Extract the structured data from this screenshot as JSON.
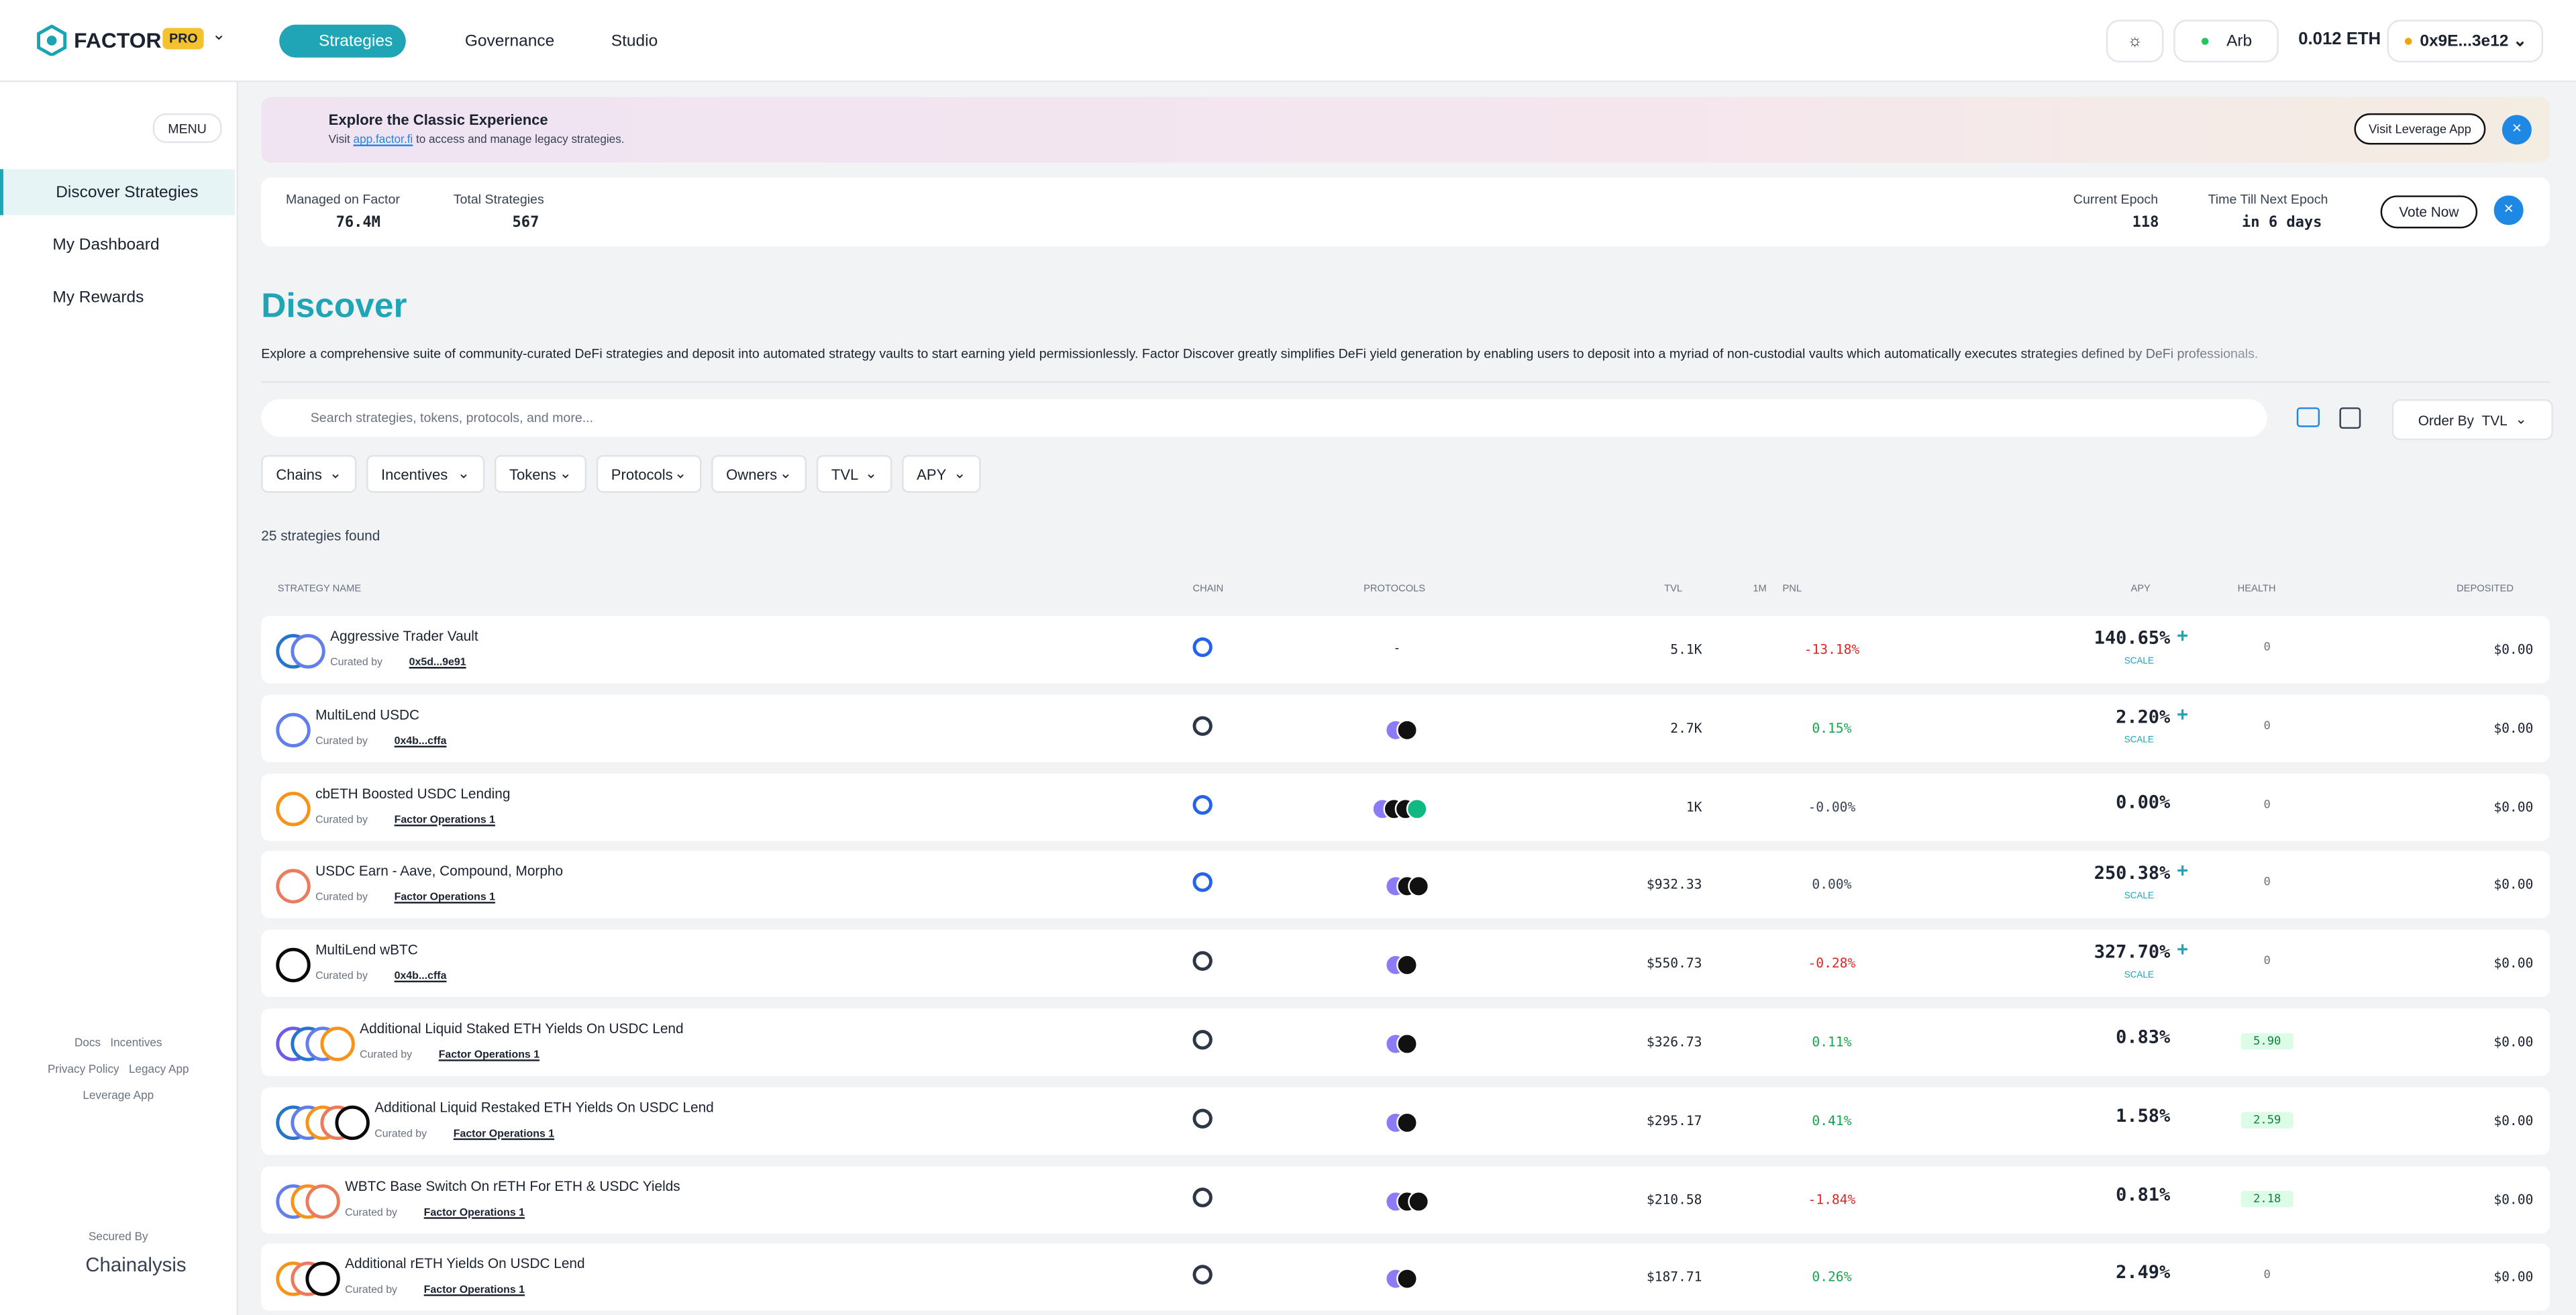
{
  "header": {
    "brand": "FACTOR",
    "badge": "PRO",
    "nav": [
      "Strategies",
      "Governance",
      "Studio"
    ],
    "network": "Arb",
    "balance": "0.012 ETH",
    "wallet": "0x9E...3e12"
  },
  "sidebar": {
    "menu": "MENU",
    "items": [
      "Discover Strategies",
      "My Dashboard",
      "My Rewards"
    ],
    "footer_links": [
      "Docs",
      "Incentives",
      "Privacy Policy",
      "Legacy App",
      "Leverage App"
    ],
    "secured_by": "Secured By",
    "partner": "Chainalysis"
  },
  "banner": {
    "title": "Explore the Classic Experience",
    "text_before": "Visit",
    "link": "app.factor.fi",
    "text_after": "to access and manage legacy strategies.",
    "button": "Visit Leverage App"
  },
  "stats": [
    {
      "label": "Managed on Factor",
      "value": "76.4M"
    },
    {
      "label": "Total Strategies",
      "value": "567"
    },
    {
      "label": "Current Epoch",
      "value": "118"
    },
    {
      "label": "Time Till Next Epoch",
      "value": "in 6 days"
    }
  ],
  "vote": "Vote Now",
  "discover": {
    "title": "Discover",
    "description": "Explore a comprehensive suite of community-curated DeFi strategies and deposit into automated strategy vaults to start earning yield permissionlessly. Factor Discover greatly simplifies DeFi yield generation by enabling users to deposit into a myriad of non-custodial vaults which automatically executes strategies defined by DeFi professionals."
  },
  "search_placeholder": "Search strategies, tokens, protocols, and more...",
  "order_by": {
    "label": "Order By",
    "value": "TVL"
  },
  "filters": [
    "Chains",
    "Incentives",
    "Tokens",
    "Protocols",
    "Owners",
    "TVL",
    "APY"
  ],
  "count": "25 strategies found",
  "table": {
    "columns": [
      "STRATEGY NAME",
      "CHAIN",
      "PROTOCOLS",
      "TVL",
      "1M",
      "PNL",
      "APY",
      "HEALTH",
      "DEPOSITED"
    ],
    "curated_label": "Curated by",
    "rows": [
      {
        "name": "Aggressive Trader Vault",
        "curator": "0x5d...9e91",
        "protocols": "-",
        "tvl": "5.1K",
        "pnl": "-13.18%",
        "apy": "140.65%",
        "boost": "SCALE",
        "health": "0",
        "deposited": "$0.00"
      },
      {
        "name": "MultiLend USDC",
        "curator": "0x4b...cffa",
        "tvl": "2.7K",
        "pnl": "0.15%",
        "apy": "2.20%",
        "boost": "SCALE",
        "health": "0",
        "deposited": "$0.00"
      },
      {
        "name": "cbETH Boosted USDC Lending",
        "curator": "Factor Operations 1",
        "tvl": "1K",
        "pnl": "-0.00%",
        "apy": "0.00%",
        "health": "0",
        "deposited": "$0.00"
      },
      {
        "name": "USDC Earn - Aave, Compound, Morpho",
        "curator": "Factor Operations 1",
        "tvl": "$932.33",
        "pnl": "0.00%",
        "apy": "250.38%",
        "boost": "SCALE",
        "health": "0",
        "deposited": "$0.00"
      },
      {
        "name": "MultiLend wBTC",
        "curator": "0x4b...cffa",
        "tvl": "$550.73",
        "pnl": "-0.28%",
        "apy": "327.70%",
        "boost": "SCALE",
        "health": "0",
        "deposited": "$0.00"
      },
      {
        "name": "Additional Liquid Staked ETH Yields On USDC Lend",
        "curator": "Factor Operations 1",
        "tvl": "$326.73",
        "pnl": "0.11%",
        "apy": "0.83%",
        "health": "5.90",
        "deposited": "$0.00"
      },
      {
        "name": "Additional Liquid Restaked ETH Yields On USDC Lend",
        "curator": "Factor Operations 1",
        "tvl": "$295.17",
        "pnl": "0.41%",
        "apy": "1.58%",
        "health": "2.59",
        "deposited": "$0.00"
      },
      {
        "name": "WBTC Base Switch On rETH For ETH & USDC Yields",
        "curator": "Factor Operations 1",
        "tvl": "$210.58",
        "pnl": "-1.84%",
        "apy": "0.81%",
        "health": "2.18",
        "deposited": "$0.00"
      },
      {
        "name": "Additional rETH Yields On USDC Lend",
        "curator": "Factor Operations 1",
        "tvl": "$187.71",
        "pnl": "0.26%",
        "apy": "2.49%",
        "health": "0",
        "deposited": "$0.00"
      }
    ]
  }
}
